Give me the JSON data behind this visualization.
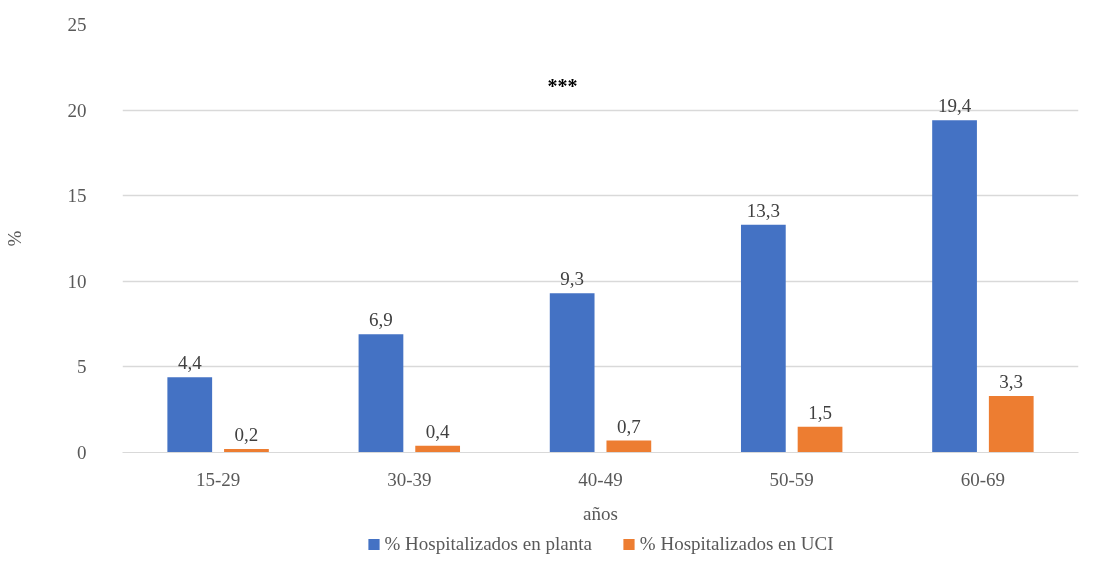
{
  "chart_data": {
    "type": "bar",
    "categories": [
      "15-29",
      "30-39",
      "40-49",
      "50-59",
      "60-69"
    ],
    "series": [
      {
        "name": "% Hospitalizados en planta",
        "color": "#4472c4",
        "values": [
          4.4,
          6.9,
          9.3,
          13.3,
          19.4
        ],
        "value_labels": [
          "4,4",
          "6,9",
          "9,3",
          "13,3",
          "19,4"
        ]
      },
      {
        "name": "% Hospitalizados en UCI",
        "color": "#ed7d31",
        "values": [
          0.2,
          0.4,
          0.7,
          1.5,
          3.3
        ],
        "value_labels": [
          "0,2",
          "0,4",
          "0,7",
          "1,5",
          "3,3"
        ]
      }
    ],
    "xlabel": "años",
    "ylabel": "%",
    "ylim": [
      0,
      25
    ],
    "yticks": [
      0,
      5,
      10,
      15,
      20,
      25
    ],
    "annotations": [
      "***"
    ],
    "grid": "y",
    "legend": "bottom"
  }
}
